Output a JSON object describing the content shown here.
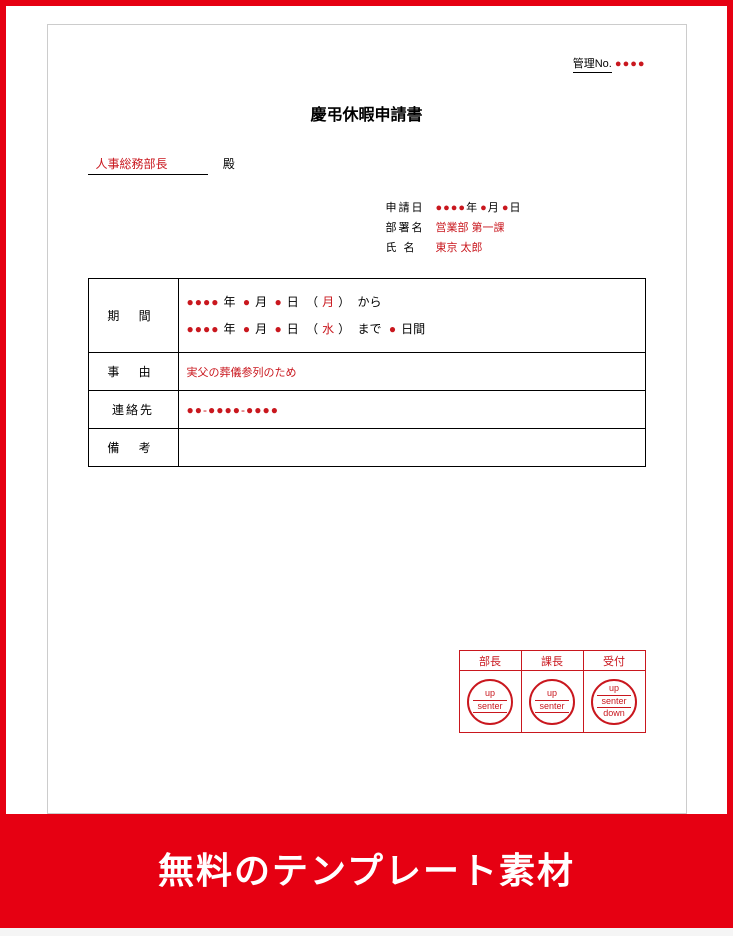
{
  "colors": {
    "accent_red": "#e60012",
    "ink_red": "#c9171e",
    "text_black": "#000000",
    "page_bg": "#ffffff",
    "border_gray": "#cccccc"
  },
  "mgmt": {
    "label": "管理No.",
    "value": "●●●●"
  },
  "title": "慶弔休暇申請書",
  "addressee": {
    "role": "人事総務部長",
    "suffix": "殿"
  },
  "meta": {
    "date_label": "申請日",
    "date_value_year": "●●●●",
    "date_y": "年",
    "date_value_month": "●",
    "date_m": "月",
    "date_value_day": "●",
    "date_d": "日",
    "dept_label": "部署名",
    "dept_value": "営業部 第一課",
    "name_label": "氏 名",
    "name_value": "東京 太郎"
  },
  "table": {
    "period_label": "期 間",
    "period_from": {
      "year": "●●●●",
      "y": "年",
      "month": "●",
      "m": "月",
      "day": "●",
      "d": "日",
      "weekday": "月",
      "from": "から",
      "paren_l": "（",
      "paren_r": "）"
    },
    "period_to": {
      "year": "●●●●",
      "y": "年",
      "month": "●",
      "m": "月",
      "day": "●",
      "d": "日",
      "weekday": "水",
      "to": "まで",
      "paren_l": "（",
      "paren_r": "）",
      "days": "●",
      "days_unit": "日間"
    },
    "reason_label": "事 由",
    "reason_value": "実父の葬儀参列のため",
    "contact_label": "連絡先",
    "contact_value": "●●-●●●●-●●●●",
    "remarks_label": "備 考",
    "remarks_value": ""
  },
  "stamps": {
    "headers": [
      "部長",
      "課長",
      "受付"
    ],
    "stamp1": {
      "l1": "up",
      "l2": "senter"
    },
    "stamp2": {
      "l1": "up",
      "l2": "senter"
    },
    "stamp3": {
      "l1": "up",
      "l2": "senter",
      "l3": "down"
    }
  },
  "banner": "無料のテンプレート素材"
}
